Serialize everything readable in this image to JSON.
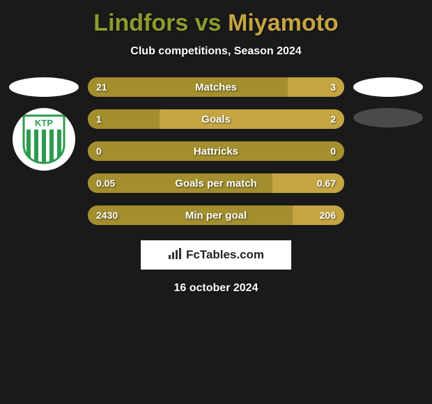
{
  "title": {
    "player1": "Lindfors",
    "vs": "vs",
    "player2": "Miyamoto",
    "player1_color": "#8f9b2d",
    "player2_color": "#c5a542"
  },
  "subtitle": "Club competitions, Season 2024",
  "ellipses": {
    "left_color": "#ffffff",
    "right_top_color": "#ffffff",
    "right_bottom_color": "#4a4a4a"
  },
  "badge": {
    "text": "KTP",
    "stripe_color": "#2e9b4f",
    "text_color": "#2e9b4f",
    "outline_color": "#2e9b4f",
    "bg_color": "#ffffff"
  },
  "bars": {
    "left_color": "#a38f2e",
    "right_color": "#c5a542",
    "track_color": "#a38f2e",
    "rows": [
      {
        "label": "Matches",
        "left": "21",
        "right": "3",
        "left_pct": 78,
        "right_pct": 22
      },
      {
        "label": "Goals",
        "left": "1",
        "right": "2",
        "left_pct": 28,
        "right_pct": 72
      },
      {
        "label": "Hattricks",
        "left": "0",
        "right": "0",
        "left_pct": 100,
        "right_pct": 0
      },
      {
        "label": "Goals per match",
        "left": "0.05",
        "right": "0.67",
        "left_pct": 72,
        "right_pct": 28
      },
      {
        "label": "Min per goal",
        "left": "2430",
        "right": "206",
        "left_pct": 80,
        "right_pct": 20
      }
    ]
  },
  "brand": "FcTables.com",
  "date": "16 october 2024"
}
